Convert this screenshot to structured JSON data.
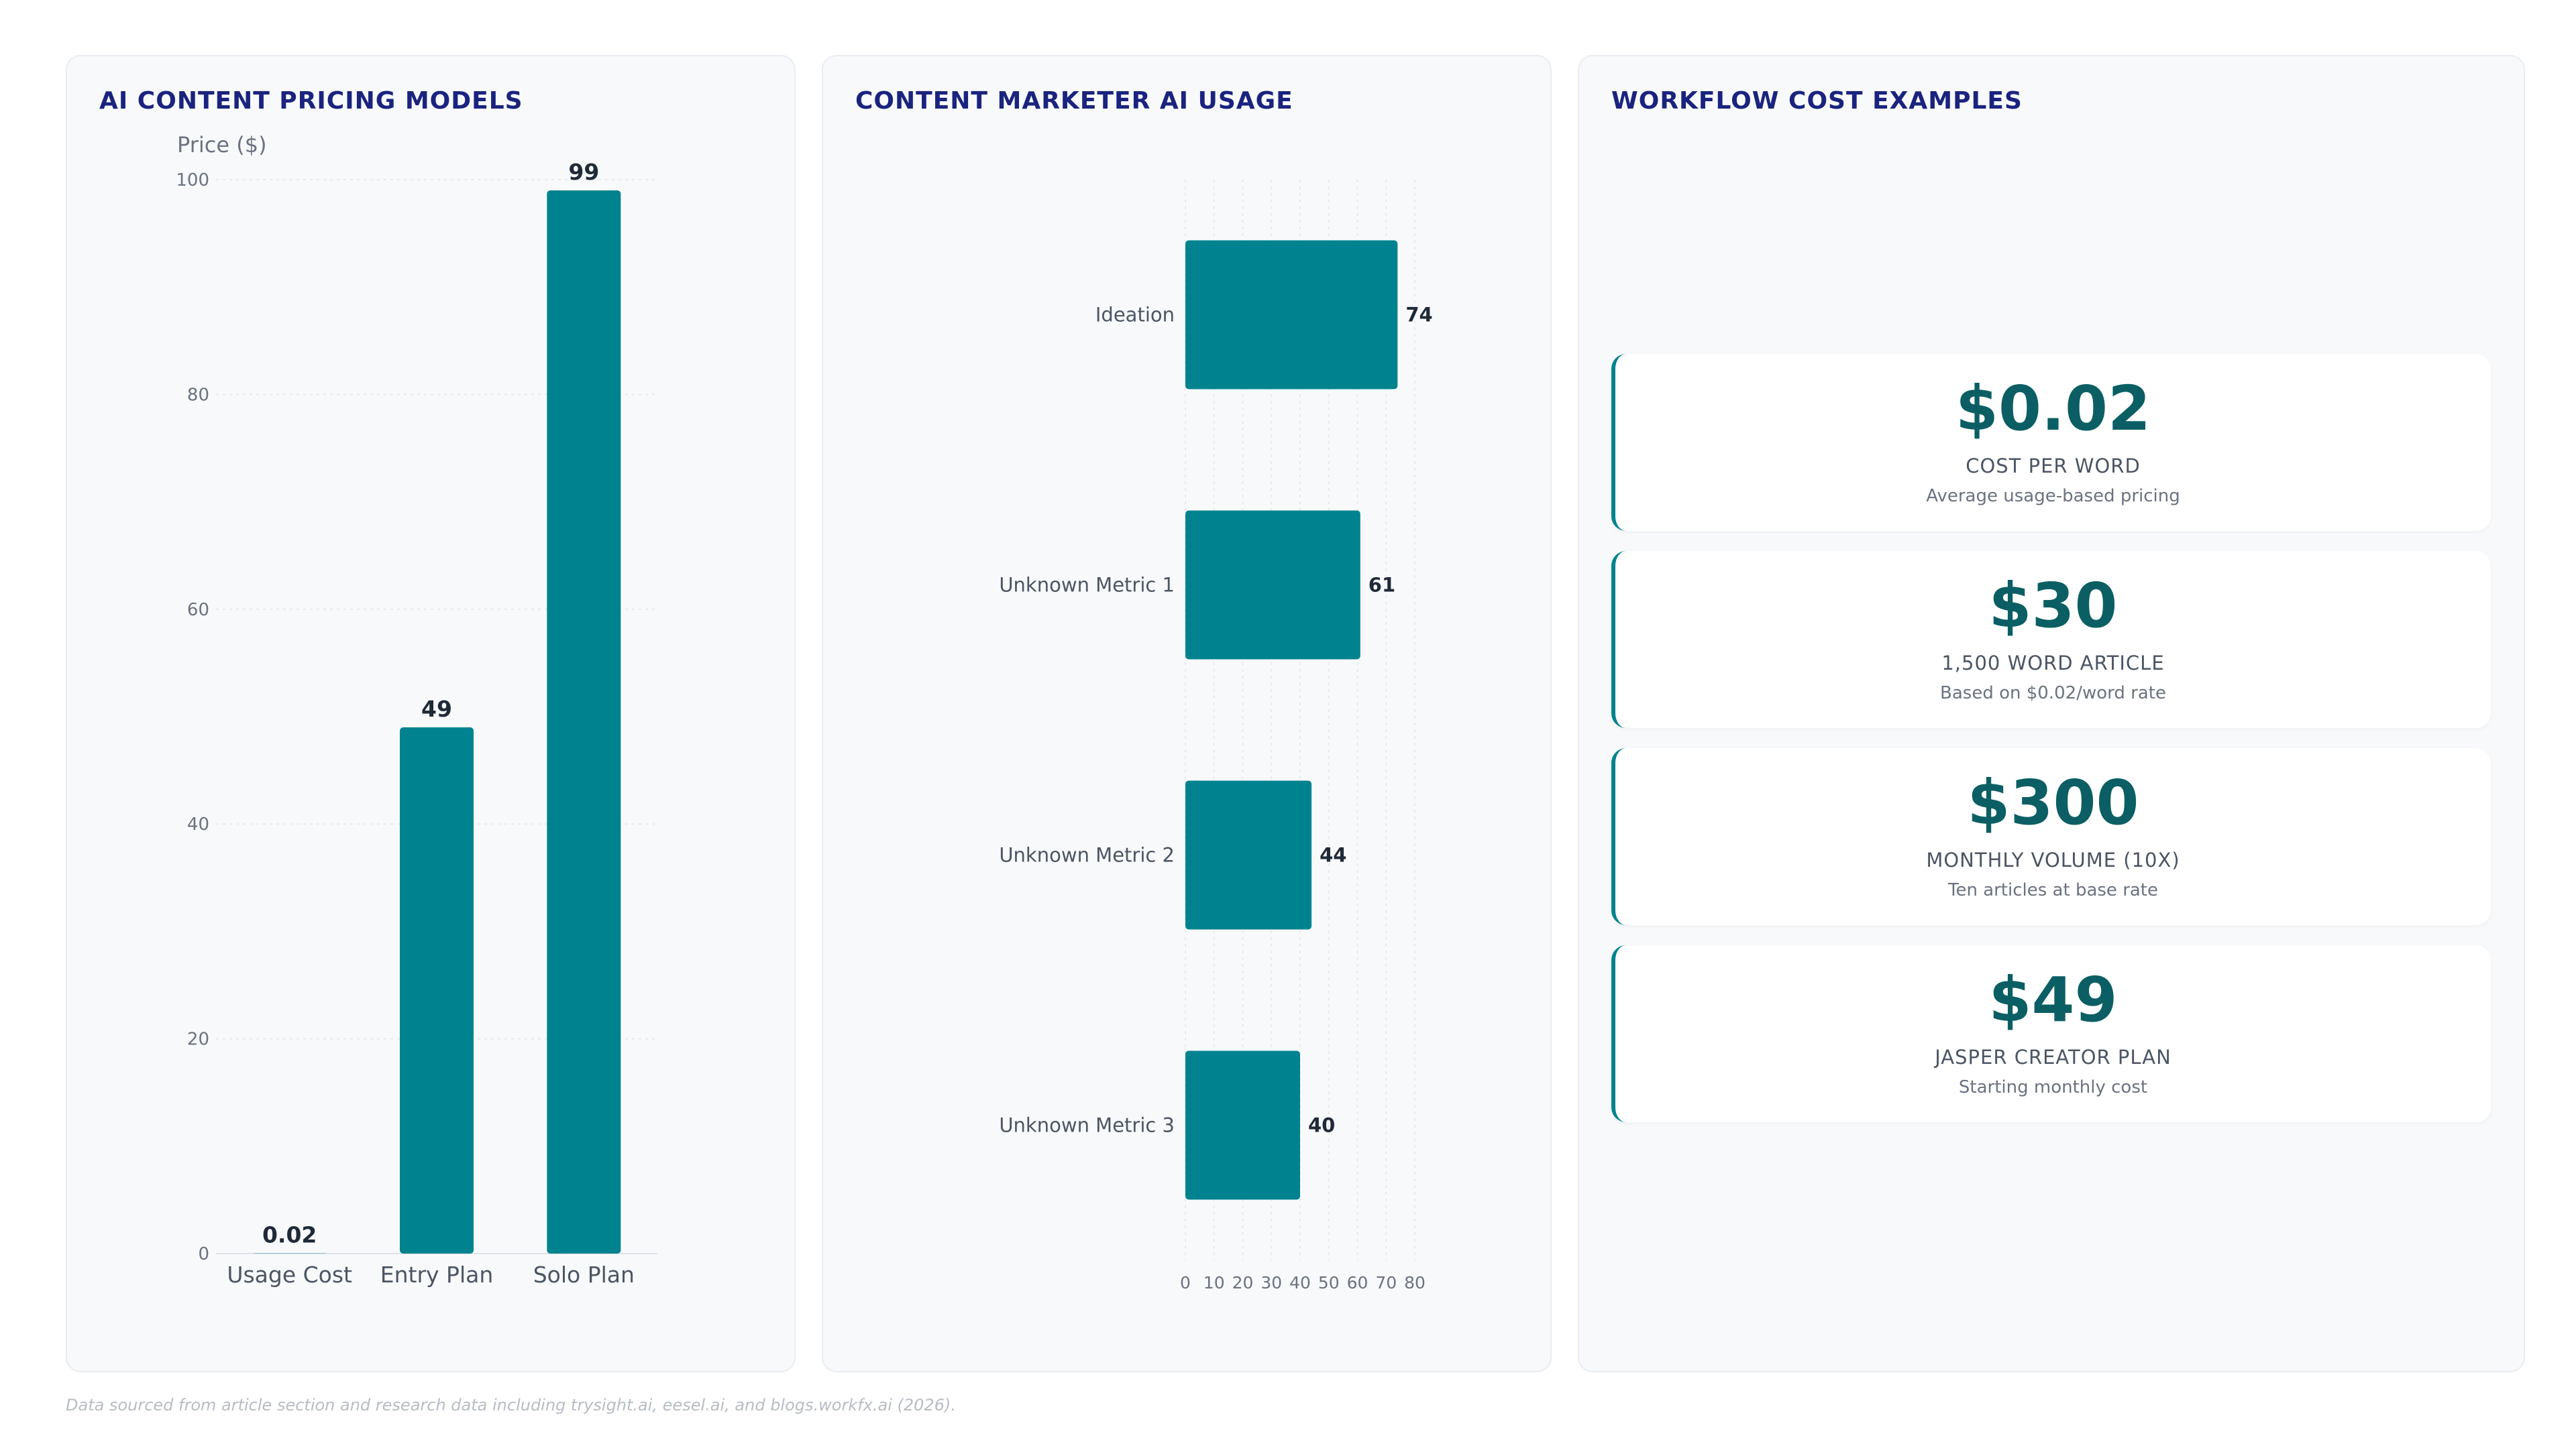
{
  "panels": {
    "pricing": {
      "title": "AI CONTENT PRICING MODELS"
    },
    "usage": {
      "title": "CONTENT MARKETER AI USAGE"
    },
    "workflow": {
      "title": "WORKFLOW COST EXAMPLES"
    }
  },
  "chart_data": [
    {
      "type": "bar",
      "orientation": "vertical",
      "title": "AI CONTENT PRICING MODELS",
      "ylabel": "Price ($)",
      "xlabel": "",
      "categories": [
        "Usage Cost",
        "Entry Plan",
        "Solo Plan"
      ],
      "values": [
        0.02,
        49,
        99
      ],
      "value_labels": [
        "0.02",
        "49",
        "99"
      ],
      "ylim": [
        0,
        100
      ],
      "yticks": [
        0,
        20,
        40,
        60,
        80,
        100
      ],
      "grid": true,
      "color": "#00838f"
    },
    {
      "type": "bar",
      "orientation": "horizontal",
      "title": "CONTENT MARKETER AI USAGE",
      "xlabel": "",
      "ylabel": "",
      "categories": [
        "Ideation",
        "Unknown Metric 1",
        "Unknown Metric 2",
        "Unknown Metric 3"
      ],
      "values": [
        74,
        61,
        44,
        40
      ],
      "value_labels": [
        "74",
        "61",
        "44",
        "40"
      ],
      "xlim": [
        0,
        80
      ],
      "xticks": [
        0,
        10,
        20,
        30,
        40,
        50,
        60,
        70,
        80
      ],
      "grid": true,
      "color": "#00838f"
    }
  ],
  "workflow": {
    "cards": [
      {
        "value": "$0.02",
        "label": "COST PER WORD",
        "desc": "Average usage-based pricing"
      },
      {
        "value": "$30",
        "label": "1,500 WORD ARTICLE",
        "desc": "Based on $0.02/word rate"
      },
      {
        "value": "$300",
        "label": "MONTHLY VOLUME (10X)",
        "desc": "Ten articles at base rate"
      },
      {
        "value": "$49",
        "label": "JASPER CREATOR PLAN",
        "desc": "Starting monthly cost"
      }
    ]
  },
  "footnote": "Data sourced from article section and research data including trysight.ai, eesel.ai, and blogs.workfx.ai (2026).",
  "colors": {
    "accent": "#00838f",
    "title": "#1a237e",
    "card_value": "#0b5f64"
  }
}
